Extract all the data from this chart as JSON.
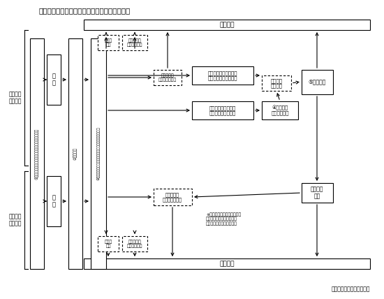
{
  "title": "図表－１　事業承継税制の基本的手続のフロー",
  "source": "（出典）　中小企業庁資料",
  "tax_office": "税務署長",
  "label_gift_tax": "贈与税の\n納税猶予",
  "label_inh_tax": "相続税の\n納税猶予",
  "box1": "①計画的な承継に係る大臣確認（後継者確定等）",
  "box_gift": "贈\n与",
  "box_inh": "相\n続",
  "box2": "②大臣認定",
  "box3": "③５年間の事業継続（毎年１回の経産局長への報告）",
  "d_gift_report": "贈与税\n申告",
  "d_gift_sub_year": "届出書提出\n（毎年１回）",
  "d_gift_sub_3y": "届出書提出\n（３年に１回）",
  "d_inh_report": "相続税\n申告",
  "d_inh_sub_year": "届出書提出\n（毎年１回）",
  "s_death_after": "５年間の事業継続期間\n経過後に贈与者が死亡",
  "s_death_during": "５年間の事業継続期\n間内に贈与者が死亡",
  "s_temp_report": "④臨時報告\n（経産局長）",
  "s_gift_exempt": "贈与税の\n免除申請",
  "s_minister": "⑤大臣確認",
  "s_inh_report": "相続税の\n申告",
  "d_inh_sub_3y": "届出書提出\n（３年に１回）",
  "note": "※５年間の事業継続期間が経\n過するまでは、毎年１回の\n経産局長への報告は必要。"
}
